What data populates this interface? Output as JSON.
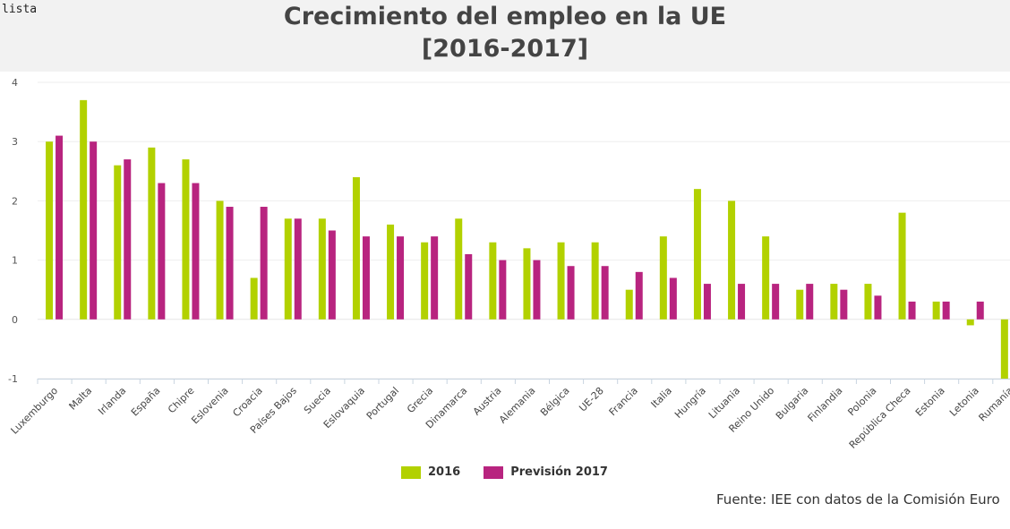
{
  "corner_text": "lista",
  "chart_data": {
    "type": "bar",
    "title_line1": "Crecimiento del empleo en la UE",
    "title_line2": "[2016-2017]",
    "ylim": [
      -1,
      4
    ],
    "yticks": [
      -1,
      0,
      1,
      2,
      3,
      4
    ],
    "grid": true,
    "legend_position": "bottom",
    "categories": [
      "Luxemburgo",
      "Malta",
      "Irlanda",
      "España",
      "Chipre",
      "Eslovenia",
      "Croacia",
      "Países Bajos",
      "Suecia",
      "Eslovaquia",
      "Portugal",
      "Grecia",
      "Dinamarca",
      "Austria",
      "Alemania",
      "Bélgica",
      "UE-28",
      "Francia",
      "Italia",
      "Hungría",
      "Lituania",
      "Reino Unido",
      "Bulgaria",
      "Finlandia",
      "Polonia",
      "República Checa",
      "Estonia",
      "Letonia",
      "Rumanía"
    ],
    "series": [
      {
        "name": "2016",
        "color": "#b2d100",
        "values": [
          3.0,
          3.7,
          2.6,
          2.9,
          2.7,
          2.0,
          0.7,
          1.7,
          1.7,
          2.4,
          1.6,
          1.3,
          1.7,
          1.3,
          1.2,
          1.3,
          1.3,
          0.5,
          1.4,
          2.2,
          2.0,
          1.4,
          0.5,
          0.6,
          0.6,
          1.8,
          0.3,
          -0.1,
          -1.0
        ]
      },
      {
        "name": "Previsión 2017",
        "color": "#b8247f",
        "values": [
          3.1,
          3.0,
          2.7,
          2.3,
          2.3,
          1.9,
          1.9,
          1.7,
          1.5,
          1.4,
          1.4,
          1.4,
          1.1,
          1.0,
          1.0,
          0.9,
          0.9,
          0.8,
          0.7,
          0.6,
          0.6,
          0.6,
          0.6,
          0.5,
          0.4,
          0.3,
          0.3,
          0.3,
          null
        ]
      }
    ]
  },
  "source": "Fuente: IEE con datos de la Comisión Euro"
}
